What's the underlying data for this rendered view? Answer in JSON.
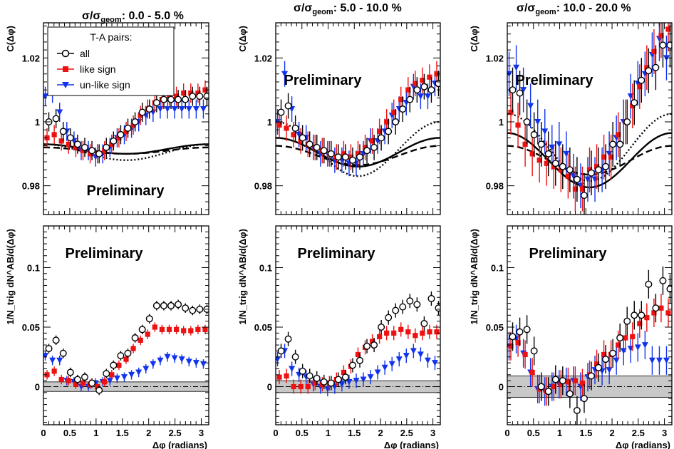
{
  "chart_data": {
    "type": "scatter",
    "layout": "2 rows x 3 columns",
    "x_label": "Δφ (radians)",
    "x_tick_labels": [
      "0",
      "0.5",
      "1",
      "1.5",
      "2",
      "2.5",
      "3"
    ],
    "xlim": [
      0,
      3.1416
    ],
    "row_labels": {
      "top": "C(Δφ)",
      "bottom": "1/N_trig dN^AB/d(Δφ)"
    },
    "top_row": {
      "ylim": [
        0.971,
        1.031
      ],
      "y_ticks": [
        0.98,
        1.0,
        1.02
      ],
      "y_tick_labels": [
        "0.98",
        "1",
        "1.02"
      ]
    },
    "bottom_row": {
      "ylim": [
        -0.032,
        0.135
      ],
      "y_ticks": [
        0,
        0.05,
        0.1
      ],
      "y_tick_labels": [
        "0",
        "0.05",
        "0.1"
      ]
    },
    "legend": {
      "title": "T-A pairs:",
      "entries": [
        {
          "label": "all",
          "marker": "open-circle",
          "color": "#000000"
        },
        {
          "label": "like sign",
          "marker": "filled-square",
          "color": "#ee1111"
        },
        {
          "label": "un-like sign",
          "marker": "down-triangle",
          "color": "#1133ee"
        }
      ]
    },
    "columns": [
      {
        "title_main": "σ/σ",
        "title_sub": "geom",
        "title_range": ": 0.0 - 5.0 %",
        "top": {
          "annotation": "Preliminary",
          "all": [
            1.0,
            1.001,
            0.997,
            0.995,
            0.993,
            0.992,
            0.991,
            0.99,
            0.992,
            0.994,
            0.996,
            0.998,
            1.0,
            1.003,
            1.004,
            1.006,
            1.007,
            1.007,
            1.007,
            1.007,
            1.008,
            1.008,
            1.008
          ],
          "like": [
            0.995,
            0.996,
            0.994,
            0.993,
            0.992,
            0.991,
            0.99,
            0.99,
            0.991,
            0.993,
            0.995,
            0.997,
            0.999,
            1.002,
            1.004,
            1.006,
            1.007,
            1.008,
            1.008,
            1.009,
            1.009,
            1.009,
            1.01
          ],
          "unlike": [
            1.008,
            1.009,
            1.003,
            0.997,
            0.994,
            0.991,
            0.991,
            0.989,
            0.99,
            0.992,
            0.995,
            0.996,
            0.998,
            1.0,
            1.002,
            1.003,
            1.004,
            1.004,
            1.004,
            1.004,
            1.004,
            1.004,
            1.004
          ],
          "models": [
            {
              "style": "solid",
              "mean": 0.9915,
              "amp": 0.0015
            },
            {
              "style": "dashed",
              "mean": 0.991,
              "amp": 0.001
            },
            {
              "style": "dotted",
              "mean": 0.9905,
              "amp": 0.0025
            }
          ]
        },
        "bottom": {
          "annotation": "Preliminary",
          "all": [
            0.032,
            0.039,
            0.028,
            0.012,
            0.006,
            0.008,
            0.003,
            -0.003,
            0.011,
            0.018,
            0.026,
            0.028,
            0.041,
            0.048,
            0.057,
            0.068,
            0.068,
            0.068,
            0.069,
            0.066,
            0.064,
            0.065,
            0.065
          ],
          "like": [
            0.01,
            0.013,
            0.006,
            0.005,
            0.002,
            0.003,
            0.002,
            0.0,
            0.004,
            0.01,
            0.018,
            0.023,
            0.032,
            0.039,
            0.044,
            0.05,
            0.048,
            0.048,
            0.048,
            0.047,
            0.047,
            0.048,
            0.048
          ],
          "unlike": [
            0.026,
            0.022,
            0.022,
            0.005,
            0.004,
            0.0,
            0.0,
            0.003,
            0.004,
            0.005,
            0.007,
            0.008,
            0.01,
            0.012,
            0.015,
            0.019,
            0.022,
            0.025,
            0.024,
            0.023,
            0.021,
            0.02,
            0.019
          ],
          "band": 0.004
        }
      },
      {
        "title_main": "σ/σ",
        "title_sub": "geom",
        "title_range": ": 5.0 - 10.0 %",
        "top": {
          "annotation": "Preliminary",
          "all": [
            1.003,
            1.005,
            0.998,
            0.995,
            0.993,
            0.992,
            0.991,
            0.99,
            0.989,
            0.989,
            0.988,
            0.989,
            0.991,
            0.992,
            0.995,
            0.997,
            1.0,
            1.004,
            1.007,
            1.01,
            1.011,
            1.01,
            1.012
          ],
          "like": [
            0.999,
            0.998,
            0.996,
            0.994,
            0.993,
            0.992,
            0.991,
            0.99,
            0.989,
            0.99,
            0.989,
            0.99,
            0.992,
            0.994,
            0.997,
            1.0,
            1.003,
            1.007,
            1.01,
            1.012,
            1.013,
            1.014,
            1.015
          ],
          "unlike": [
            1.0,
            1.015,
            1.004,
            0.996,
            0.995,
            0.992,
            0.99,
            0.99,
            0.988,
            0.988,
            0.987,
            0.987,
            0.99,
            0.994,
            0.994,
            0.997,
            1.002,
            1.004,
            1.006,
            1.011,
            1.008,
            1.008,
            1.012
          ],
          "models": [
            {
              "style": "solid",
              "mean": 0.9905,
              "amp": 0.0045
            },
            {
              "style": "dashed",
              "mean": 0.9895,
              "amp": 0.003
            },
            {
              "style": "dotted",
              "mean": 0.9915,
              "amp": 0.0085
            }
          ]
        },
        "bottom": {
          "annotation": "Preliminary",
          "all": [
            0.03,
            0.04,
            0.025,
            0.013,
            0.009,
            0.007,
            0.004,
            0.003,
            0.006,
            0.008,
            0.018,
            0.022,
            0.034,
            0.035,
            0.05,
            0.058,
            0.064,
            0.067,
            0.072,
            0.069,
            0.053,
            0.074,
            0.066
          ],
          "like": [
            0.008,
            0.009,
            0.0,
            0.0,
            0.0,
            0.003,
            0.002,
            0.003,
            0.006,
            0.012,
            0.017,
            0.027,
            0.033,
            0.038,
            0.042,
            0.045,
            0.045,
            0.048,
            0.046,
            0.043,
            0.045,
            0.046,
            0.046
          ],
          "unlike": [
            0.023,
            0.03,
            0.015,
            0.01,
            0.008,
            0.002,
            0.0,
            -0.002,
            0.0,
            0.002,
            0.004,
            0.005,
            0.006,
            0.008,
            0.012,
            0.016,
            0.019,
            0.023,
            0.026,
            0.03,
            0.027,
            0.022,
            0.02
          ],
          "band": 0.005
        }
      },
      {
        "title_main": "σ/σ",
        "title_sub": "geom",
        "title_range": ": 10.0 - 20.0 %",
        "top": {
          "annotation": "Preliminary",
          "all": [
            1.01,
            1.009,
            1.0,
            0.996,
            0.993,
            0.99,
            0.987,
            0.986,
            0.985,
            0.982,
            0.977,
            0.984,
            0.985,
            0.986,
            0.993,
            0.993,
            1.0,
            1.006,
            1.013,
            1.016,
            1.017,
            1.024,
            1.024
          ],
          "like": [
            1.003,
            0.999,
            0.993,
            0.99,
            0.988,
            0.987,
            0.986,
            0.985,
            0.983,
            0.979,
            0.979,
            0.985,
            0.986,
            0.989,
            0.989,
            0.996,
            1.0,
            1.005,
            1.011,
            1.017,
            1.022,
            1.027,
            1.029
          ],
          "unlike": [
            1.015,
            1.017,
            1.01,
            1.005,
            1.0,
            0.997,
            0.992,
            0.993,
            0.99,
            0.983,
            0.98,
            0.982,
            0.982,
            0.985,
            0.99,
            0.995,
            1.0,
            1.008,
            1.012,
            1.015,
            1.021,
            1.026,
            1.02
          ],
          "models": [
            {
              "style": "solid",
              "mean": 0.988,
              "amp": 0.0085
            },
            {
              "style": "dashed",
              "mean": 0.988,
              "amp": 0.0045
            },
            {
              "style": "dotted",
              "mean": 0.992,
              "amp": 0.0105
            }
          ]
        },
        "bottom": {
          "annotation": "Preliminary",
          "all": [
            0.042,
            0.046,
            0.048,
            0.03,
            0.0,
            -0.004,
            0.006,
            0.005,
            -0.006,
            -0.02,
            -0.01,
            0.009,
            0.016,
            0.023,
            0.028,
            0.041,
            0.055,
            0.06,
            0.06,
            0.086,
            0.066,
            0.089,
            0.082
          ],
          "like": [
            0.034,
            0.037,
            0.027,
            0.012,
            -0.002,
            -0.004,
            0.0,
            0.002,
            0.004,
            0.005,
            0.003,
            0.01,
            0.019,
            0.027,
            0.027,
            0.035,
            0.041,
            0.042,
            0.053,
            0.058,
            0.062,
            0.066,
            0.062
          ],
          "unlike": [
            0.034,
            0.04,
            0.028,
            0.012,
            -0.002,
            -0.004,
            0.0,
            0.002,
            0.004,
            0.005,
            0.0,
            0.008,
            0.014,
            0.013,
            0.014,
            0.022,
            0.03,
            0.032,
            0.033,
            0.035,
            0.022,
            0.022,
            0.022
          ],
          "band": 0.009
        }
      }
    ]
  }
}
